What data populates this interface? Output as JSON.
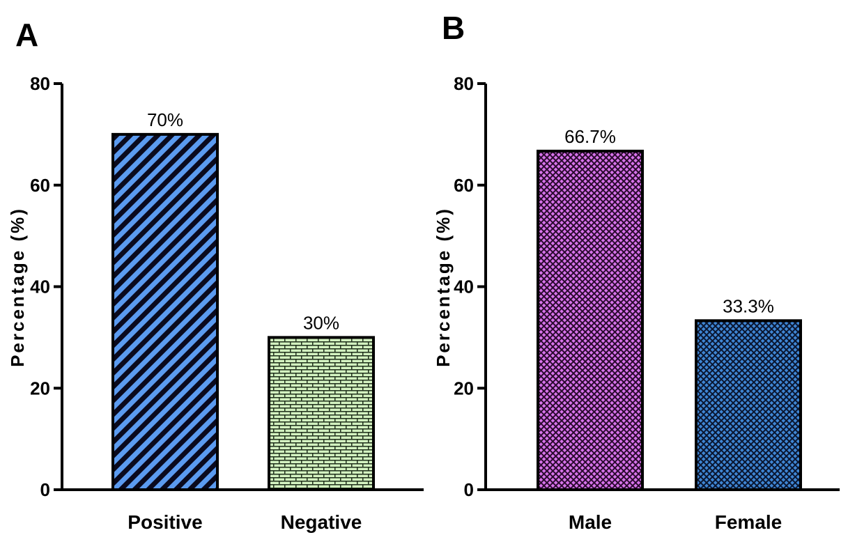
{
  "chart_data": [
    {
      "panel_label": "A",
      "type": "bar",
      "categories": [
        "Positive",
        "Negative"
      ],
      "values": [
        70,
        30
      ],
      "data_labels": [
        "70%",
        "30%"
      ],
      "ylabel": "Percentage (%)",
      "xlabel": "",
      "ylim": [
        0,
        80
      ],
      "yticks": [
        "0",
        "20",
        "40",
        "60",
        "80"
      ],
      "bar_styles": [
        {
          "fill": "#5b9bf0",
          "pattern": "diagonal-stripes",
          "pattern_color": "#0a0a1e"
        },
        {
          "fill": "#d3f2c0",
          "pattern": "brick",
          "pattern_color": "#1e2e1a"
        }
      ],
      "grid": false
    },
    {
      "panel_label": "B",
      "type": "bar",
      "categories": [
        "Male",
        "Female"
      ],
      "values": [
        66.7,
        33.3
      ],
      "data_labels": [
        "66.7%",
        "33.3%"
      ],
      "ylabel": "Percentage (%)",
      "xlabel": "",
      "ylim": [
        0,
        80
      ],
      "yticks": [
        "0",
        "20",
        "40",
        "60",
        "80"
      ],
      "bar_styles": [
        {
          "fill": "#d773ea",
          "pattern": "crosshatch",
          "pattern_color": "#2a0a2e"
        },
        {
          "fill": "#3f86d4",
          "pattern": "crosshatch",
          "pattern_color": "#0a1630"
        }
      ],
      "grid": false
    }
  ]
}
